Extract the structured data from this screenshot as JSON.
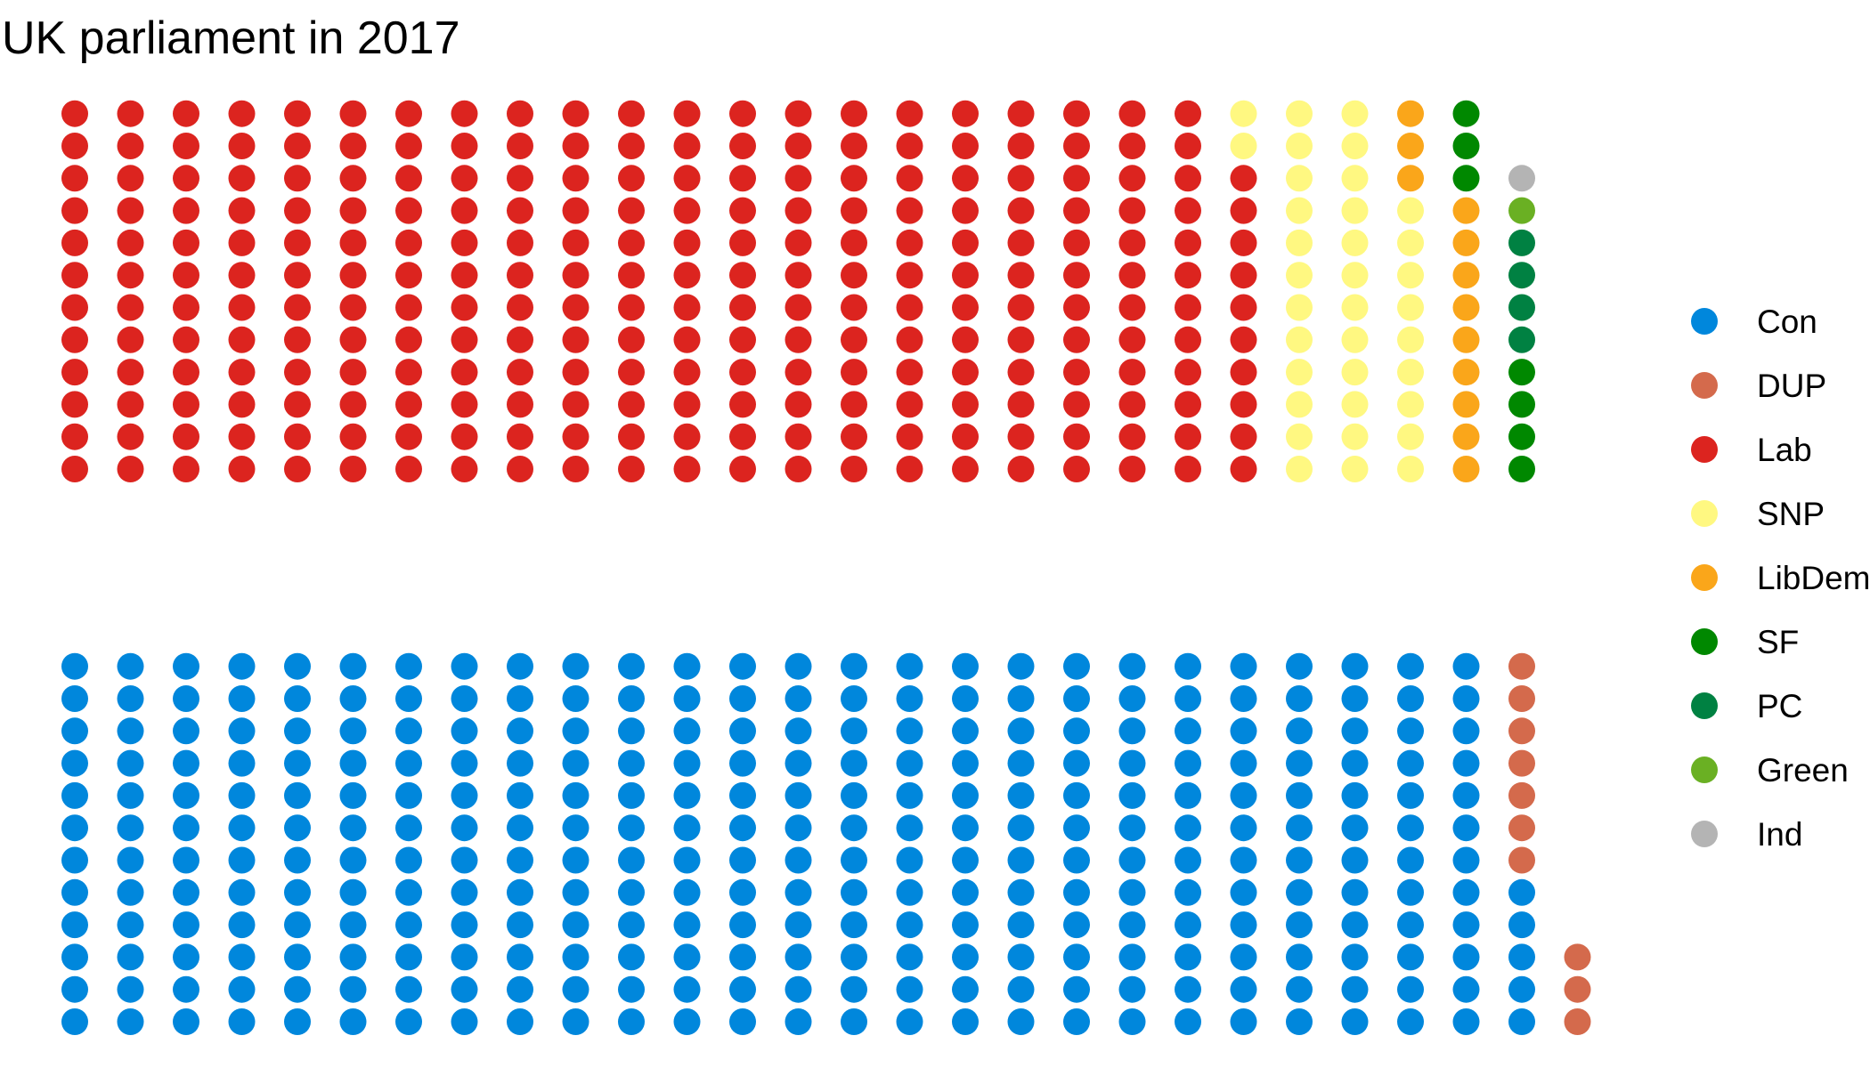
{
  "chart_data": {
    "type": "parliament-dot-plot",
    "title": "UK parliament in 2017",
    "total_seats": 650,
    "parties": [
      {
        "name": "Con",
        "seats": 317,
        "color": "#0087DC",
        "side": "government"
      },
      {
        "name": "DUP",
        "seats": 10,
        "color": "#D46A4C",
        "side": "government"
      },
      {
        "name": "Lab",
        "seats": 262,
        "color": "#DC241F",
        "side": "opposition"
      },
      {
        "name": "SNP",
        "seats": 35,
        "color": "#FFF881",
        "side": "opposition"
      },
      {
        "name": "LibDem",
        "seats": 12,
        "color": "#FAA61A",
        "side": "opposition"
      },
      {
        "name": "SF",
        "seats": 7,
        "color": "#008800",
        "side": "opposition"
      },
      {
        "name": "PC",
        "seats": 4,
        "color": "#008142",
        "side": "opposition"
      },
      {
        "name": "Green",
        "seats": 1,
        "color": "#6AB023",
        "side": "opposition"
      },
      {
        "name": "Ind",
        "seats": 1,
        "color": "#B4B4B4",
        "side": "opposition"
      }
    ],
    "legend_position": "right",
    "grid": false
  }
}
